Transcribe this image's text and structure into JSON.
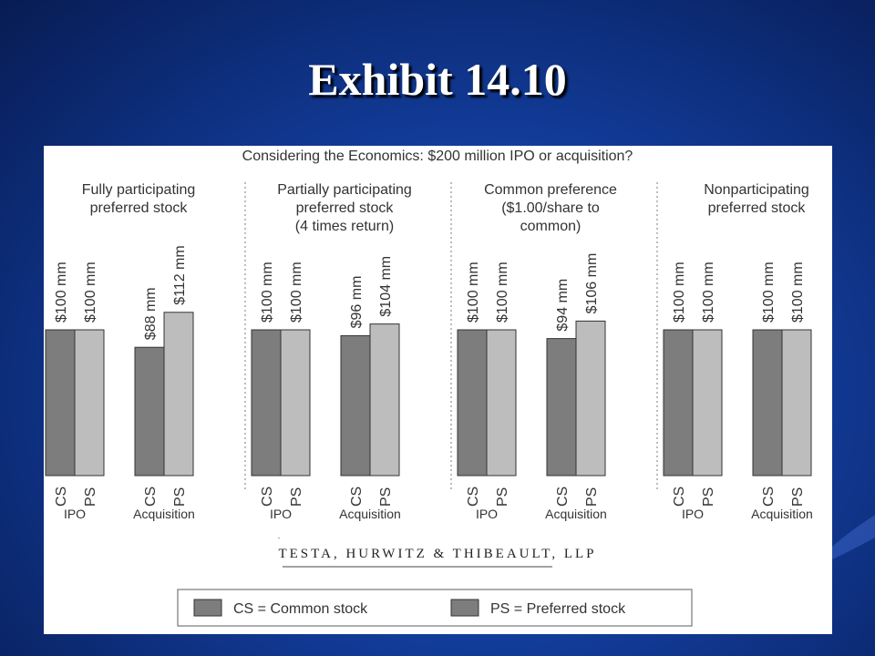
{
  "slide": {
    "title": "Exhibit 14.10"
  },
  "chart_data": {
    "type": "bar",
    "title": "Considering the Economics: $200 million IPO or acquisition?",
    "ylim": [
      0,
      160
    ],
    "grid": false,
    "legend_position": "bottom",
    "groups": [
      {
        "title_lines": [
          "Fully participating",
          "preferred stock"
        ],
        "scenarios": [
          {
            "name": "IPO",
            "bars": [
              {
                "label": "CS",
                "value": 100,
                "value_label": "$100 mm"
              },
              {
                "label": "PS",
                "value": 100,
                "value_label": "$100 mm"
              }
            ]
          },
          {
            "name": "Acquisition",
            "bars": [
              {
                "label": "CS",
                "value": 88,
                "value_label": "$88 mm"
              },
              {
                "label": "PS",
                "value": 112,
                "value_label": "$112 mm"
              }
            ]
          }
        ]
      },
      {
        "title_lines": [
          "Partially participating",
          "preferred stock",
          "(4 times return)"
        ],
        "scenarios": [
          {
            "name": "IPO",
            "bars": [
              {
                "label": "CS",
                "value": 100,
                "value_label": "$100 mm"
              },
              {
                "label": "PS",
                "value": 100,
                "value_label": "$100 mm"
              }
            ]
          },
          {
            "name": "Acquisition",
            "bars": [
              {
                "label": "CS",
                "value": 96,
                "value_label": "$96 mm"
              },
              {
                "label": "PS",
                "value": 104,
                "value_label": "$104 mm"
              }
            ]
          }
        ]
      },
      {
        "title_lines": [
          "Common preference",
          "($1.00/share to",
          "common)"
        ],
        "scenarios": [
          {
            "name": "IPO",
            "bars": [
              {
                "label": "CS",
                "value": 100,
                "value_label": "$100 mm"
              },
              {
                "label": "PS",
                "value": 100,
                "value_label": "$100 mm"
              }
            ]
          },
          {
            "name": "Acquisition",
            "bars": [
              {
                "label": "CS",
                "value": 94,
                "value_label": "$94 mm"
              },
              {
                "label": "PS",
                "value": 106,
                "value_label": "$106 mm"
              }
            ]
          }
        ]
      },
      {
        "title_lines": [
          "Nonparticipating",
          "preferred stock"
        ],
        "scenarios": [
          {
            "name": "IPO",
            "bars": [
              {
                "label": "CS",
                "value": 100,
                "value_label": "$100 mm"
              },
              {
                "label": "PS",
                "value": 100,
                "value_label": "$100 mm"
              }
            ]
          },
          {
            "name": "Acquisition",
            "bars": [
              {
                "label": "CS",
                "value": 100,
                "value_label": "$100 mm"
              },
              {
                "label": "PS",
                "value": 100,
                "value_label": "$100 mm"
              }
            ]
          }
        ]
      }
    ],
    "legend": [
      {
        "key": "CS",
        "text": "CS = Common stock",
        "color": "#7d7d7d"
      },
      {
        "key": "PS",
        "text": "PS = Preferred stock",
        "color": "#7d7d7d"
      }
    ],
    "colors": {
      "CS": "#7d7d7d",
      "PS": "#bdbdbd"
    },
    "source": "TESTA, HURWITZ & THIBEAULT, LLP"
  }
}
